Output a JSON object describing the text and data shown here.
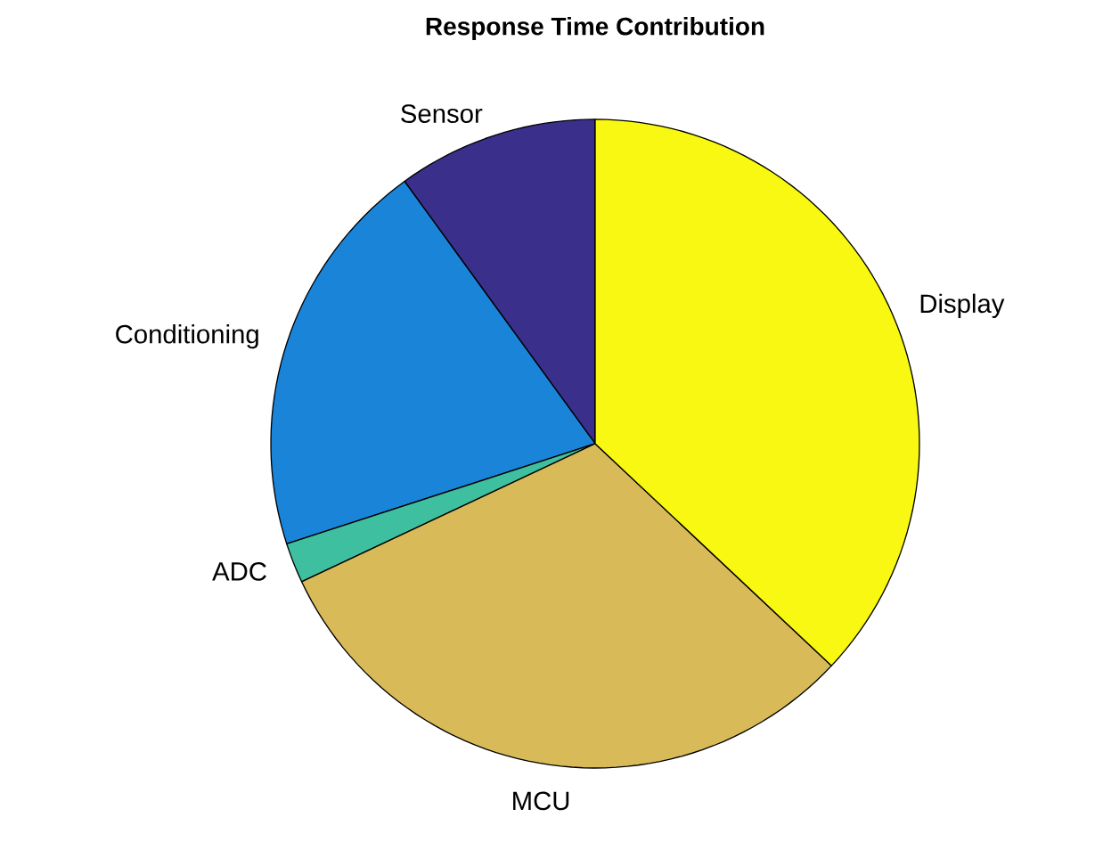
{
  "chart_data": {
    "type": "pie",
    "title": "Response Time Contribution",
    "categories": [
      "Sensor",
      "Conditioning",
      "ADC",
      "MCU",
      "Display"
    ],
    "values": [
      10,
      20,
      2,
      31,
      37
    ],
    "colors": [
      "#3b2f8c",
      "#1a84d9",
      "#3ebfa0",
      "#d8ba58",
      "#f8f812"
    ]
  }
}
